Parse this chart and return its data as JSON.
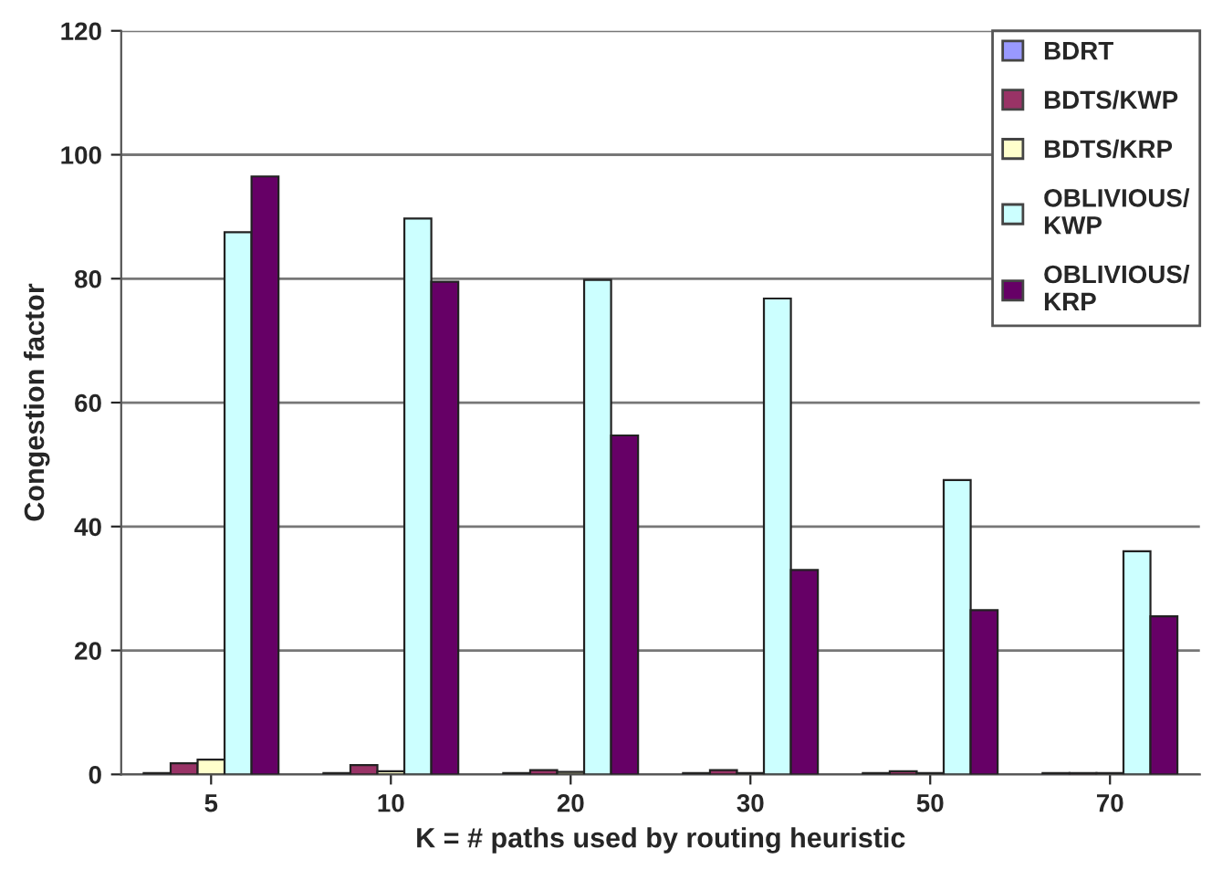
{
  "chart_data": {
    "type": "bar",
    "xlabel": "K = # paths used by routing heuristic",
    "ylabel": "Congestion factor",
    "categories": [
      "5",
      "10",
      "20",
      "30",
      "50",
      "70"
    ],
    "series": [
      {
        "name": "BDRT",
        "color": "#9999ff",
        "values": [
          0.2,
          0.2,
          0.2,
          0.2,
          0.2,
          0.2
        ]
      },
      {
        "name": "BDTS/KWP",
        "color": "#993366",
        "values": [
          1.8,
          1.5,
          0.7,
          0.7,
          0.5,
          0.2
        ]
      },
      {
        "name": "BDTS/KRP",
        "color": "#ffffcc",
        "values": [
          2.4,
          0.5,
          0.4,
          0.2,
          0.2,
          0.2
        ]
      },
      {
        "name": "OBLIVIOUS/\nKWP",
        "color": "#ccffff",
        "values": [
          87.5,
          89.7,
          79.8,
          76.8,
          47.5,
          36
        ]
      },
      {
        "name": "OBLIVIOUS/\nKRP",
        "color": "#660066",
        "values": [
          96.5,
          79.5,
          54.7,
          33,
          26.5,
          25.5
        ]
      }
    ],
    "ylim": [
      0,
      120
    ],
    "yticks": [
      0,
      20,
      40,
      60,
      80,
      100,
      120
    ],
    "grid": "y",
    "legend": "top right"
  }
}
